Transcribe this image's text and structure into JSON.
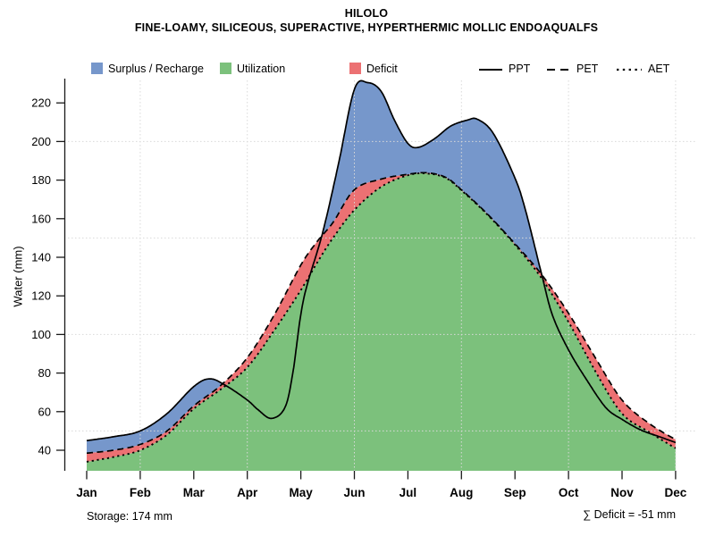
{
  "header": {
    "title": "HILOLO",
    "subtitle": "FINE-LOAMY, SILICEOUS, SUPERACTIVE, HYPERTHERMIC MOLLIC ENDOAQUALFS"
  },
  "footer": {
    "storage": "Storage: 174 mm",
    "total_deficit": "∑ Deficit = -51 mm"
  },
  "chart_data": {
    "type": "area",
    "title": "HILOLO",
    "subtitle": "FINE-LOAMY, SILICEOUS, SUPERACTIVE, HYPERTHERMIC MOLLIC ENDOAQUALFS",
    "ylabel": "Water (mm)",
    "ylim": [
      29,
      234
    ],
    "yticks": [
      40,
      60,
      80,
      100,
      120,
      140,
      160,
      180,
      200,
      220
    ],
    "categories": [
      "Jan",
      "Feb",
      "Mar",
      "Apr",
      "May",
      "Jun",
      "Jul",
      "Aug",
      "Sep",
      "Oct",
      "Nov",
      "Dec"
    ],
    "grid": {
      "y_values": [
        50,
        100,
        150,
        200
      ],
      "x_months": [
        "Feb",
        "Apr",
        "Jun",
        "Aug",
        "Oct",
        "Dec"
      ],
      "color": "#d9d9d9"
    },
    "line_color": "#000000",
    "axis_color": "#1a1a1a",
    "areas": [
      {
        "key": "surplus",
        "label": "Surplus / Recharge",
        "color": "#7697CB"
      },
      {
        "key": "utilization",
        "label": "Utilization",
        "color": "#7CC17C"
      },
      {
        "key": "deficit",
        "label": "Deficit",
        "color": "#EC7173"
      }
    ],
    "series": [
      {
        "name": "PPT",
        "line": "solid",
        "monthly": [
          45,
          50,
          73,
          66,
          118,
          227,
          199,
          211,
          181,
          92,
          56,
          44
        ],
        "samples": [
          [
            0,
            45
          ],
          [
            0.5,
            47
          ],
          [
            1,
            50
          ],
          [
            1.5,
            59
          ],
          [
            2,
            73
          ],
          [
            2.3,
            77
          ],
          [
            2.6,
            73.5
          ],
          [
            3,
            66
          ],
          [
            3.2,
            61
          ],
          [
            3.45,
            56.5
          ],
          [
            3.7,
            62
          ],
          [
            3.85,
            80
          ],
          [
            4.05,
            118
          ],
          [
            4.4,
            152
          ],
          [
            4.7,
            188
          ],
          [
            5,
            227
          ],
          [
            5.25,
            230.5
          ],
          [
            5.5,
            226
          ],
          [
            5.75,
            211
          ],
          [
            6,
            199
          ],
          [
            6.2,
            197
          ],
          [
            6.5,
            201.5
          ],
          [
            6.8,
            208
          ],
          [
            7.1,
            211
          ],
          [
            7.3,
            211.5
          ],
          [
            7.6,
            204
          ],
          [
            8,
            181
          ],
          [
            8.2,
            164
          ],
          [
            8.5,
            131
          ],
          [
            8.7,
            110
          ],
          [
            9,
            92
          ],
          [
            9.35,
            76
          ],
          [
            9.7,
            62
          ],
          [
            10,
            56
          ],
          [
            10.35,
            50.5
          ],
          [
            10.7,
            47
          ],
          [
            11,
            44
          ]
        ]
      },
      {
        "name": "PET",
        "line": "dashed",
        "monthly": [
          39,
          43,
          63,
          88,
          136,
          175,
          183,
          175,
          147,
          111,
          66,
          46
        ],
        "samples": [
          [
            0,
            38.5
          ],
          [
            0.5,
            40
          ],
          [
            1,
            43
          ],
          [
            1.5,
            50
          ],
          [
            2,
            63
          ],
          [
            2.5,
            73.5
          ],
          [
            3,
            88
          ],
          [
            3.5,
            110
          ],
          [
            4,
            136
          ],
          [
            4.3,
            148
          ],
          [
            4.6,
            158
          ],
          [
            5,
            175
          ],
          [
            5.5,
            180.5
          ],
          [
            6,
            183
          ],
          [
            6.35,
            183.8
          ],
          [
            6.7,
            181.5
          ],
          [
            7,
            175
          ],
          [
            7.5,
            162
          ],
          [
            8,
            147
          ],
          [
            8.5,
            131
          ],
          [
            9,
            111
          ],
          [
            9.5,
            88
          ],
          [
            10,
            66
          ],
          [
            10.5,
            54
          ],
          [
            11,
            45.5
          ]
        ]
      },
      {
        "name": "AET",
        "line": "dotted",
        "monthly": [
          34,
          40,
          62,
          83,
          123,
          164,
          183,
          175,
          146,
          107,
          59,
          41
        ],
        "samples": [
          [
            0,
            34
          ],
          [
            0.5,
            36.5
          ],
          [
            1,
            40
          ],
          [
            1.5,
            48
          ],
          [
            2,
            61.5
          ],
          [
            2.5,
            71.5
          ],
          [
            3,
            83
          ],
          [
            3.5,
            102
          ],
          [
            4,
            123
          ],
          [
            4.3,
            137
          ],
          [
            4.6,
            150
          ],
          [
            5,
            164.5
          ],
          [
            5.5,
            176.5
          ],
          [
            6,
            182.5
          ],
          [
            6.35,
            183.4
          ],
          [
            6.7,
            181.2
          ],
          [
            7,
            174.7
          ],
          [
            7.5,
            161.7
          ],
          [
            8,
            146.5
          ],
          [
            8.5,
            129
          ],
          [
            9,
            106.5
          ],
          [
            9.5,
            81
          ],
          [
            10,
            59
          ],
          [
            10.5,
            49.5
          ],
          [
            11,
            41
          ]
        ]
      }
    ],
    "annotations": {
      "storage": "Storage: 174 mm",
      "total_deficit": "∑ Deficit = -51 mm"
    }
  }
}
